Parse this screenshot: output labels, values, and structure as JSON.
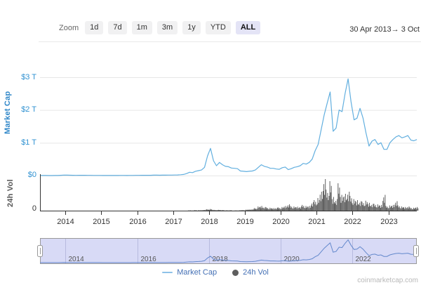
{
  "toolbar": {
    "zoom_label": "Zoom",
    "buttons": [
      "1d",
      "7d",
      "1m",
      "3m",
      "1y",
      "YTD",
      "ALL"
    ],
    "active_button": "ALL",
    "range_start": "30 Apr 2013",
    "range_arrow": "→",
    "range_end": "3 Oct"
  },
  "axes": {
    "market_cap_title": "Market Cap",
    "vol_title": "24h Vol",
    "mc_ticks": [
      {
        "label": "$3 T",
        "value": 3
      },
      {
        "label": "$2 T",
        "value": 2
      },
      {
        "label": "$1 T",
        "value": 1
      },
      {
        "label": "$0",
        "value": 0
      }
    ],
    "vol_zero_label": "0"
  },
  "legend": [
    {
      "label": "Market Cap",
      "marker": "line"
    },
    {
      "label": "24h Vol",
      "marker": "dot"
    }
  ],
  "watermark": "coinmarketcap.com",
  "colors": {
    "mc_line": "#62afdf",
    "mc_axis_text": "#3293d2",
    "vol_bar": "#616161",
    "axis_line": "#333333",
    "gridline": "#e6e6e6",
    "nav_fill": "#d8daf6",
    "nav_border": "#999999",
    "nav_gridline": "#b7badf",
    "nav_line": "#6388cc",
    "nav_label": "#555555",
    "tick_label": "#333333",
    "active_button_bg": "#e4e4f6",
    "legend_text": "#4470b5"
  },
  "chart_data": {
    "type": "line+column",
    "title": "",
    "x_unit": "year",
    "start_year_fraction": 2013.25,
    "step_months": 1,
    "x_ticks": [
      2014,
      2015,
      2016,
      2017,
      2018,
      2019,
      2020,
      2021,
      2022,
      2023
    ],
    "navigator_ticks": [
      2014,
      2016,
      2018,
      2020,
      2022
    ],
    "series": [
      {
        "name": "Market Cap",
        "type": "line",
        "unit": "$T",
        "ylim": [
          0,
          3.2
        ],
        "values": [
          0.001,
          0.002,
          0.002,
          0.001,
          0.001,
          0.002,
          0.002,
          0.009,
          0.015,
          0.012,
          0.011,
          0.008,
          0.007,
          0.008,
          0.008,
          0.008,
          0.007,
          0.006,
          0.005,
          0.005,
          0.005,
          0.003,
          0.003,
          0.004,
          0.003,
          0.003,
          0.003,
          0.004,
          0.004,
          0.003,
          0.004,
          0.005,
          0.007,
          0.007,
          0.008,
          0.008,
          0.009,
          0.009,
          0.012,
          0.012,
          0.011,
          0.012,
          0.012,
          0.014,
          0.016,
          0.018,
          0.02,
          0.025,
          0.035,
          0.06,
          0.1,
          0.09,
          0.13,
          0.15,
          0.17,
          0.25,
          0.6,
          0.83,
          0.45,
          0.3,
          0.4,
          0.33,
          0.28,
          0.27,
          0.23,
          0.22,
          0.21,
          0.14,
          0.13,
          0.12,
          0.13,
          0.14,
          0.17,
          0.25,
          0.33,
          0.28,
          0.26,
          0.22,
          0.22,
          0.2,
          0.19,
          0.24,
          0.26,
          0.18,
          0.21,
          0.25,
          0.27,
          0.3,
          0.37,
          0.35,
          0.4,
          0.5,
          0.76,
          0.95,
          1.4,
          1.85,
          2.2,
          2.55,
          1.35,
          1.45,
          2.0,
          1.95,
          2.5,
          2.95,
          2.25,
          1.7,
          1.75,
          2.05,
          1.75,
          1.3,
          0.9,
          1.05,
          1.1,
          0.95,
          1.0,
          0.8,
          0.8,
          1.0,
          1.1,
          1.18,
          1.22,
          1.15,
          1.18,
          1.22,
          1.08,
          1.06,
          1.1
        ]
      },
      {
        "name": "24h Vol",
        "type": "column",
        "unit": "$B",
        "ylim": [
          0,
          300
        ],
        "values": [
          0,
          0,
          0,
          0,
          0,
          0,
          0,
          0.1,
          0.2,
          0.1,
          0.1,
          0.1,
          0.05,
          0.05,
          0.05,
          0.05,
          0.03,
          0.03,
          0.03,
          0.03,
          0.03,
          0.03,
          0.03,
          0.03,
          0.03,
          0.03,
          0.03,
          0.03,
          0.03,
          0.03,
          0.03,
          0.05,
          0.05,
          0.1,
          0.1,
          0.1,
          0.1,
          0.1,
          0.2,
          0.2,
          0.15,
          0.15,
          0.15,
          0.2,
          0.25,
          0.3,
          0.4,
          0.6,
          1,
          2,
          4,
          3,
          5,
          4,
          5,
          8,
          14,
          16,
          8,
          6,
          8,
          6,
          4,
          4,
          4,
          3,
          3,
          5,
          5,
          10,
          12,
          15,
          25,
          40,
          45,
          35,
          30,
          28,
          25,
          28,
          30,
          35,
          45,
          60,
          45,
          40,
          38,
          40,
          55,
          45,
          45,
          80,
          100,
          120,
          180,
          300,
          200,
          280,
          130,
          110,
          260,
          150,
          160,
          180,
          140,
          110,
          100,
          90,
          85,
          95,
          75,
          65,
          65,
          60,
          55,
          150,
          45,
          50,
          55,
          90,
          50,
          40,
          35,
          40,
          30,
          28,
          35
        ]
      }
    ]
  }
}
